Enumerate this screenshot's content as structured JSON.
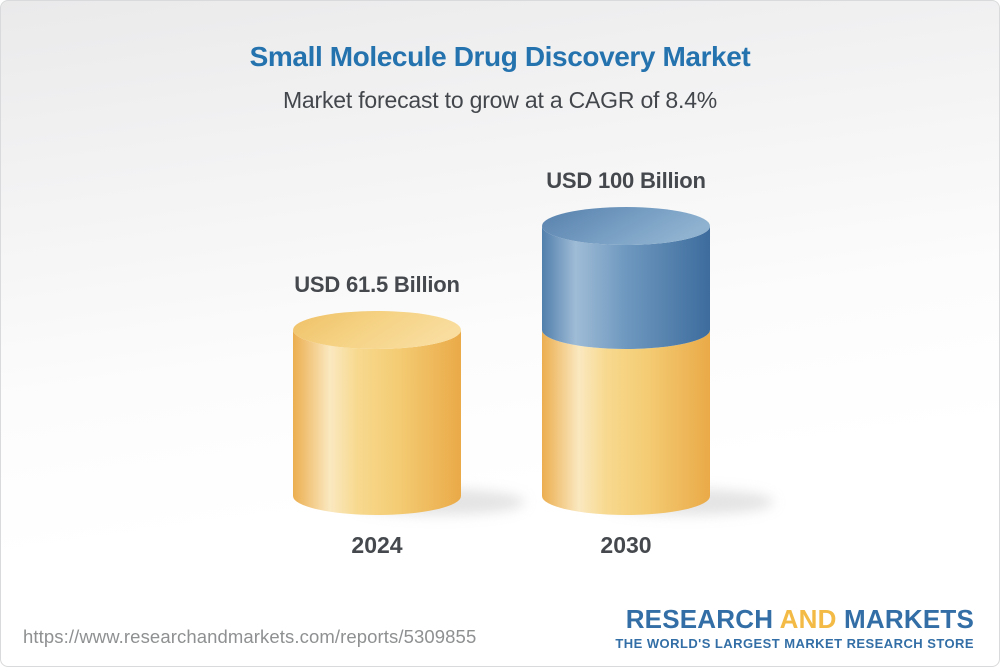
{
  "header": {
    "title": "Small Molecule Drug Discovery Market",
    "subtitle": "Market forecast to grow at a CAGR of 8.4%"
  },
  "chart_data": {
    "type": "bar",
    "style": "3d-cylinder",
    "title": "Small Molecule Drug Discovery Market",
    "subtitle": "Market forecast to grow at a CAGR of 8.4%",
    "cagr_text": "8.4%",
    "unit": "USD Billion",
    "categories": [
      "2024",
      "2030"
    ],
    "values": [
      61.5,
      100
    ],
    "ylim": [
      0,
      100
    ],
    "legend": false,
    "axes_visible": false,
    "bars": [
      {
        "category": "2024",
        "value": 61.5,
        "label": "USD 61.5 Billion",
        "segments": [
          {
            "name": "market-size-2024",
            "value": 61.5,
            "color": "gold"
          }
        ]
      },
      {
        "category": "2030",
        "value": 100,
        "label": "USD 100 Billion",
        "segments": [
          {
            "name": "base-2024-level",
            "value": 61.5,
            "color": "gold"
          },
          {
            "name": "forecast-growth",
            "value": 38.5,
            "color": "blue"
          }
        ]
      }
    ],
    "colors": {
      "gold": "#F5CE79",
      "blue": "#5E8CB8"
    }
  },
  "footer": {
    "url": "https://www.researchandmarkets.com/reports/5309855",
    "logo": {
      "word1": "RESEARCH",
      "word2": "AND",
      "word3": "MARKETS",
      "tagline": "THE WORLD'S LARGEST MARKET RESEARCH STORE"
    }
  },
  "theme": {
    "title_blue": "#2472AE",
    "text_dark": "#45494E",
    "url_gray": "#8E9091",
    "logo_blue": "#336FA6",
    "logo_gold": "#F3BB45",
    "border_gray": "#D9DADB"
  }
}
